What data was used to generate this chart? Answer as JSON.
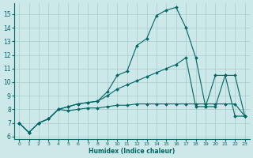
{
  "xlabel": "Humidex (Indice chaleur)",
  "ylabel": "",
  "bg_color": "#cce8e8",
  "line_color": "#006666",
  "grid_color": "#aacccc",
  "xlim": [
    -0.5,
    23.5
  ],
  "ylim": [
    5.8,
    15.8
  ],
  "yticks": [
    6,
    7,
    8,
    9,
    10,
    11,
    12,
    13,
    14,
    15
  ],
  "xticks": [
    0,
    1,
    2,
    3,
    4,
    5,
    6,
    7,
    8,
    9,
    10,
    11,
    12,
    13,
    14,
    15,
    16,
    17,
    18,
    19,
    20,
    21,
    22,
    23
  ],
  "series1_x": [
    0,
    1,
    2,
    3,
    4,
    5,
    6,
    7,
    8,
    9,
    10,
    11,
    12,
    13,
    14,
    15,
    16,
    17,
    18,
    19,
    20,
    21,
    22,
    23
  ],
  "series1_y": [
    7.0,
    6.3,
    7.0,
    7.3,
    8.0,
    8.2,
    8.4,
    8.5,
    8.6,
    9.3,
    10.5,
    10.8,
    12.7,
    13.2,
    14.9,
    15.3,
    15.5,
    14.0,
    11.8,
    8.2,
    8.2,
    10.5,
    10.5,
    7.5
  ],
  "series2_x": [
    0,
    1,
    2,
    3,
    4,
    5,
    6,
    7,
    8,
    9,
    10,
    11,
    12,
    13,
    14,
    15,
    16,
    17,
    18,
    19,
    20,
    21,
    22,
    23
  ],
  "series2_y": [
    7.0,
    6.3,
    7.0,
    7.3,
    8.0,
    8.2,
    8.4,
    8.5,
    8.6,
    9.0,
    9.5,
    9.8,
    10.1,
    10.4,
    10.7,
    11.0,
    11.3,
    11.8,
    8.2,
    8.2,
    10.5,
    10.5,
    7.5,
    7.5
  ],
  "series3_x": [
    0,
    1,
    2,
    3,
    4,
    5,
    6,
    7,
    8,
    9,
    10,
    11,
    12,
    13,
    14,
    15,
    16,
    17,
    18,
    19,
    20,
    21,
    22,
    23
  ],
  "series3_y": [
    7.0,
    6.3,
    7.0,
    7.3,
    8.0,
    7.9,
    8.0,
    8.1,
    8.1,
    8.2,
    8.3,
    8.3,
    8.4,
    8.4,
    8.4,
    8.4,
    8.4,
    8.4,
    8.4,
    8.4,
    8.4,
    8.4,
    8.4,
    7.5
  ]
}
